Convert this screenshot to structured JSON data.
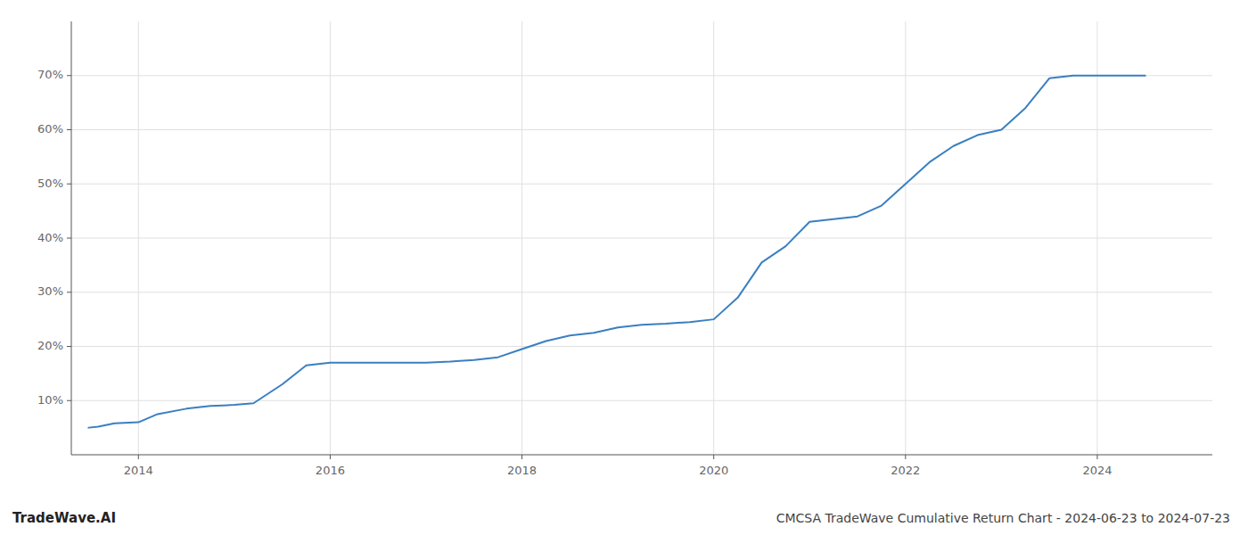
{
  "chart_data": {
    "type": "line",
    "title": "CMCSA TradeWave Cumulative Return Chart - 2024-06-23 to 2024-07-23",
    "annotations": [
      "TradeWave.AI"
    ],
    "color": "#3a7fc1",
    "grid": true,
    "x": [
      2013.48,
      2013.58,
      2013.75,
      2014.0,
      2014.2,
      2014.5,
      2014.75,
      2015.0,
      2015.2,
      2015.5,
      2015.75,
      2016.0,
      2016.25,
      2016.5,
      2016.75,
      2017.0,
      2017.25,
      2017.5,
      2017.75,
      2018.0,
      2018.25,
      2018.5,
      2018.75,
      2019.0,
      2019.25,
      2019.5,
      2019.75,
      2020.0,
      2020.25,
      2020.5,
      2020.75,
      2021.0,
      2021.25,
      2021.5,
      2021.75,
      2022.0,
      2022.25,
      2022.5,
      2022.75,
      2023.0,
      2023.25,
      2023.5,
      2023.75,
      2024.0,
      2024.5
    ],
    "values": [
      5.0,
      5.2,
      5.8,
      6.0,
      7.5,
      8.5,
      9.0,
      9.2,
      9.5,
      13.0,
      16.5,
      17.0,
      17.0,
      17.0,
      17.0,
      17.0,
      17.2,
      17.5,
      18.0,
      19.5,
      21.0,
      22.0,
      22.5,
      23.5,
      24.0,
      24.2,
      24.5,
      25.0,
      29.0,
      35.5,
      38.5,
      43.0,
      43.5,
      44.0,
      46.0,
      50.0,
      54.0,
      57.0,
      59.0,
      60.0,
      64.0,
      69.5,
      70.0,
      70.0,
      70.0
    ],
    "xlim": [
      2013.3,
      2025.2
    ],
    "ylim": [
      0,
      80
    ],
    "xticks": [
      2014,
      2016,
      2018,
      2020,
      2022,
      2024
    ],
    "yticks": [
      {
        "value": 10,
        "label": "10%"
      },
      {
        "value": 20,
        "label": "20%"
      },
      {
        "value": 30,
        "label": "30%"
      },
      {
        "value": 40,
        "label": "40%"
      },
      {
        "value": 50,
        "label": "50%"
      },
      {
        "value": 60,
        "label": "60%"
      },
      {
        "value": 70,
        "label": "70%"
      }
    ]
  }
}
